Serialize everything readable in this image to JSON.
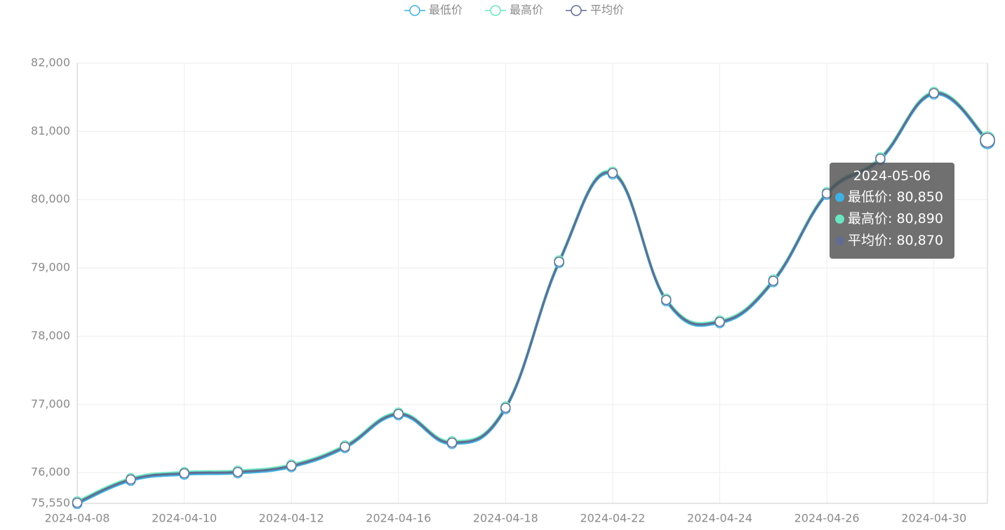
{
  "chart_data": {
    "type": "line",
    "categories": [
      "2024-04-08",
      null,
      "2024-04-10",
      null,
      "2024-04-12",
      null,
      "2024-04-16",
      null,
      "2024-04-18",
      null,
      "2024-04-22",
      null,
      "2024-04-24",
      null,
      "2024-04-26",
      null,
      "2024-04-30",
      "2024-05-06"
    ],
    "series": [
      {
        "name": "最低价",
        "color": "#3fb1e3",
        "values": [
          75540,
          75880,
          75970,
          75990,
          76080,
          76360,
          76840,
          76420,
          76930,
          79070,
          80370,
          78510,
          78190,
          78790,
          80070,
          80580,
          81540,
          80850
        ]
      },
      {
        "name": "最高价",
        "color": "#6be6c1",
        "values": [
          75580,
          75920,
          76010,
          76030,
          76120,
          76400,
          76880,
          76460,
          76970,
          79110,
          80410,
          78550,
          78230,
          78830,
          80110,
          80620,
          81580,
          80890
        ]
      },
      {
        "name": "平均价",
        "color": "#626c91",
        "values": [
          75560,
          75900,
          75990,
          76010,
          76100,
          76380,
          76860,
          76440,
          76950,
          79090,
          80390,
          78530,
          78210,
          78810,
          80090,
          80600,
          81560,
          80870
        ]
      }
    ],
    "ylim": [
      75550,
      82000
    ],
    "yticks": [
      {
        "value": 75550,
        "label": "75,550"
      },
      {
        "value": 76000,
        "label": "76,000"
      },
      {
        "value": 77000,
        "label": "77,000"
      },
      {
        "value": 78000,
        "label": "78,000"
      },
      {
        "value": 79000,
        "label": "79,000"
      },
      {
        "value": 80000,
        "label": "80,000"
      },
      {
        "value": 81000,
        "label": "81,000"
      },
      {
        "value": 82000,
        "label": "82,000"
      }
    ],
    "grid": true,
    "legend": "top",
    "tooltip": {
      "index": 17,
      "items": [
        "最低价: 80,850",
        "最高价: 80,890",
        "平均价: 80,870"
      ]
    }
  }
}
